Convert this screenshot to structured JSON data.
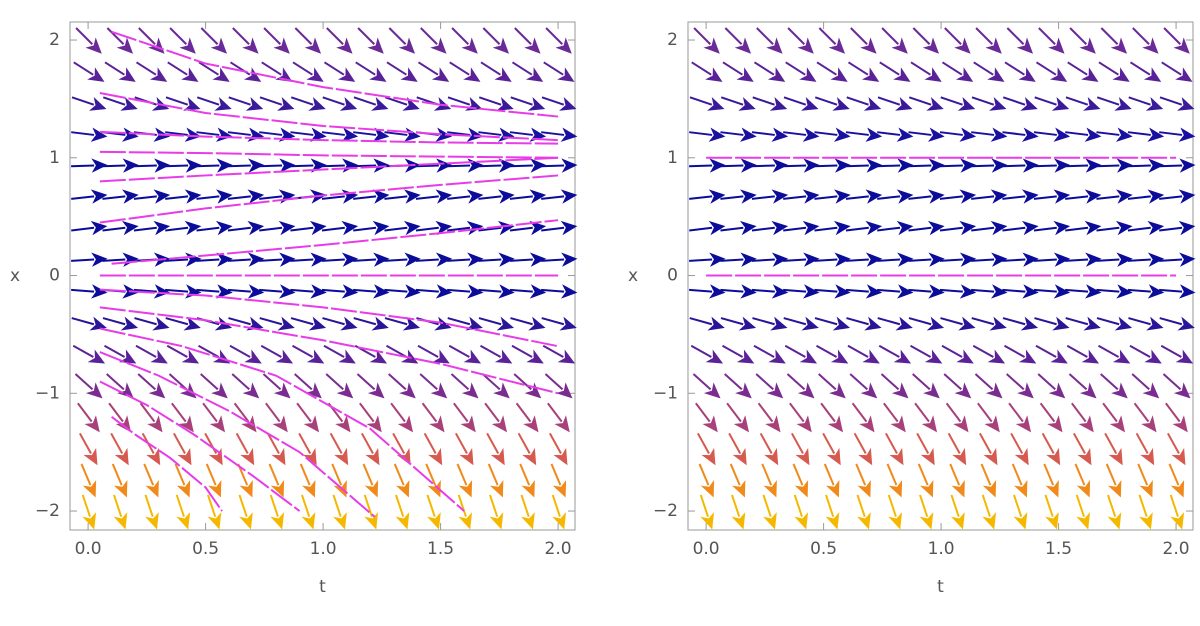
{
  "chart_data": [
    {
      "type": "vector_field",
      "xlabel": "t",
      "ylabel": "x",
      "xlim": [
        -0.077,
        2.072
      ],
      "ylim": [
        -2.161,
        2.153
      ],
      "xticks": [
        {
          "value": 0,
          "label": "0.0"
        },
        {
          "value": 0.5,
          "label": "0.5"
        },
        {
          "value": 1,
          "label": "1.0"
        },
        {
          "value": 1.5,
          "label": "1.5"
        },
        {
          "value": 2,
          "label": "2.0"
        }
      ],
      "yticks": [
        {
          "value": -2,
          "label": "−2"
        },
        {
          "value": -1,
          "label": "−1"
        },
        0,
        1,
        2
      ],
      "grid_t": [
        0,
        0.133,
        0.267,
        0.4,
        0.533,
        0.667,
        0.8,
        0.933,
        1.067,
        1.2,
        1.333,
        1.467,
        1.6,
        1.733,
        1.867,
        2
      ],
      "grid_x": [
        -2,
        -1.733,
        -1.467,
        -1.2,
        -0.933,
        -0.667,
        -0.4,
        -0.133,
        0.133,
        0.4,
        0.667,
        0.933,
        1.2,
        1.467,
        1.733,
        2
      ],
      "slopes": [
        -6,
        -4.74,
        -3.62,
        -2.64,
        -1.8,
        -1.11,
        -0.56,
        -0.15,
        0.116,
        0.24,
        0.22,
        0.062,
        -0.24,
        -0.68,
        -1.27,
        -2
      ],
      "row_colors": [
        "#f5b800",
        "#f08a1a",
        "#d65a50",
        "#a8407a",
        "#7a2c90",
        "#5a2298",
        "#2a1598",
        "#0c0c9a",
        "#0c0c9a",
        "#0c0c9a",
        "#0c0c9a",
        "#0c0c9a",
        "#1a10a0",
        "#3a1a9a",
        "#5a2298",
        "#6a2a98"
      ],
      "stream_color": "#e83ce8",
      "streamlines": [
        {
          "t": [
            0.1,
            0.5,
            1,
            1.5,
            2
          ],
          "x": [
            2.07,
            1.8,
            1.6,
            1.45,
            1.35
          ]
        },
        {
          "t": [
            0.05,
            0.5,
            1,
            1.5,
            2
          ],
          "x": [
            1.55,
            1.38,
            1.27,
            1.2,
            1.15
          ]
        },
        {
          "t": [
            0.05,
            0.5,
            1,
            1.5,
            2
          ],
          "x": [
            1.22,
            1.18,
            1.15,
            1.13,
            1.12
          ]
        },
        {
          "t": [
            0.05,
            0.5,
            1,
            1.5,
            2
          ],
          "x": [
            1.05,
            1.04,
            1.02,
            1.01,
            1
          ]
        },
        {
          "t": [
            0.05,
            0.5,
            1,
            1.5,
            2
          ],
          "x": [
            0.8,
            0.85,
            0.9,
            0.95,
            1
          ]
        },
        {
          "t": [
            0.05,
            0.5,
            1,
            1.5,
            2
          ],
          "x": [
            0.45,
            0.57,
            0.68,
            0.77,
            0.85
          ]
        },
        {
          "t": [
            0.1,
            0.5,
            1,
            1.5,
            2
          ],
          "x": [
            0.1,
            0.17,
            0.26,
            0.36,
            0.47
          ]
        },
        {
          "t": [
            0.05,
            0.5,
            1,
            1.5,
            2
          ],
          "x": [
            0,
            0,
            0,
            0,
            0
          ]
        },
        {
          "t": [
            0.05,
            0.5,
            1,
            1.5,
            2
          ],
          "x": [
            -0.12,
            -0.17,
            -0.27,
            -0.4,
            -0.6
          ]
        },
        {
          "t": [
            0.05,
            0.5,
            1,
            1.5,
            2
          ],
          "x": [
            -0.27,
            -0.38,
            -0.55,
            -0.75,
            -1
          ]
        },
        {
          "t": [
            0.05,
            0.4,
            0.8,
            1.2,
            1.6
          ],
          "x": [
            -0.45,
            -0.6,
            -0.85,
            -1.3,
            -2
          ]
        },
        {
          "t": [
            0.05,
            0.3,
            0.6,
            0.9,
            1.22
          ],
          "x": [
            -0.65,
            -0.85,
            -1.15,
            -1.5,
            -2.05
          ]
        },
        {
          "t": [
            0.05,
            0.25,
            0.45,
            0.7,
            0.9
          ],
          "x": [
            -0.9,
            -1.1,
            -1.35,
            -1.7,
            -2
          ]
        },
        {
          "t": [
            0.1,
            0.2,
            0.35,
            0.5,
            0.57
          ],
          "x": [
            -1.2,
            -1.35,
            -1.55,
            -1.8,
            -2
          ]
        }
      ]
    },
    {
      "type": "vector_field",
      "xlabel": "t",
      "ylabel": "x",
      "xlim": [
        -0.077,
        2.072
      ],
      "ylim": [
        -2.161,
        2.153
      ],
      "xticks": [
        {
          "value": 0,
          "label": "0.0"
        },
        {
          "value": 0.5,
          "label": "0.5"
        },
        {
          "value": 1,
          "label": "1.0"
        },
        {
          "value": 1.5,
          "label": "1.5"
        },
        {
          "value": 2,
          "label": "2.0"
        }
      ],
      "yticks": [
        {
          "value": -2,
          "label": "−2"
        },
        {
          "value": -1,
          "label": "−1"
        },
        0,
        1,
        2
      ],
      "grid_t": [
        0,
        0.133,
        0.267,
        0.4,
        0.533,
        0.667,
        0.8,
        0.933,
        1.067,
        1.2,
        1.333,
        1.467,
        1.6,
        1.733,
        1.867,
        2
      ],
      "grid_x": [
        -2,
        -1.733,
        -1.467,
        -1.2,
        -0.933,
        -0.667,
        -0.4,
        -0.133,
        0.133,
        0.4,
        0.667,
        0.933,
        1.2,
        1.467,
        1.733,
        2
      ],
      "slopes": [
        -6,
        -4.74,
        -3.62,
        -2.64,
        -1.8,
        -1.11,
        -0.56,
        -0.15,
        0.116,
        0.24,
        0.22,
        0.062,
        -0.24,
        -0.68,
        -1.27,
        -2
      ],
      "row_colors": [
        "#f5b800",
        "#f08a1a",
        "#d65a50",
        "#a8407a",
        "#7a2c90",
        "#5a2298",
        "#2a1598",
        "#0c0c9a",
        "#0c0c9a",
        "#0c0c9a",
        "#0c0c9a",
        "#0c0c9a",
        "#1a10a0",
        "#3a1a9a",
        "#5a2298",
        "#6a2a98"
      ],
      "stream_color": "#e83ce8",
      "streamlines": [
        {
          "t": [
            0,
            0.5,
            1,
            1.5,
            2
          ],
          "x": [
            1,
            1,
            1,
            1,
            1
          ]
        },
        {
          "t": [
            0,
            0.5,
            1,
            1.5,
            2
          ],
          "x": [
            0,
            0,
            0,
            0,
            0
          ]
        }
      ]
    }
  ]
}
